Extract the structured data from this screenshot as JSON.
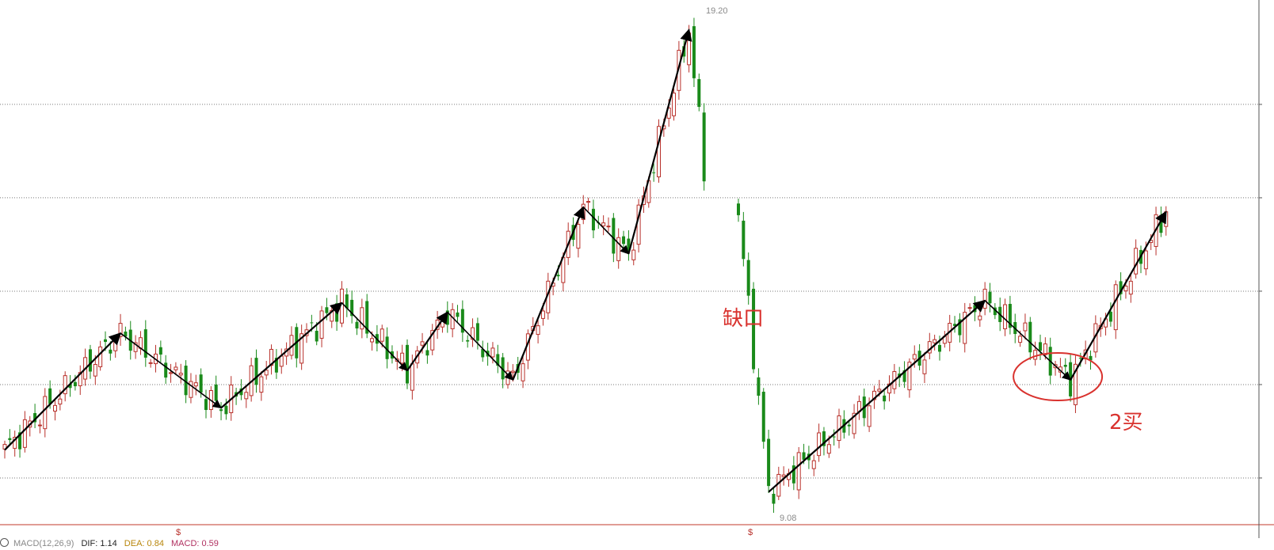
{
  "chart_data": {
    "type": "candlestick",
    "high_label": "19.20",
    "low_label": "9.08",
    "price_gridlines": [
      17.5,
      15.5,
      13.5,
      11.5,
      9.5
    ],
    "ylim": [
      8.72,
      19.6
    ],
    "up_color": "#b8302a",
    "down_color": "#1a8a1a",
    "segment_color": "#000000",
    "annotation_color": "#d9322e",
    "annotations": {
      "gap": "缺口",
      "second_buy": "2买"
    },
    "markers": [
      "$",
      "$"
    ],
    "segment_pivots": [
      {
        "i": 0,
        "price": 10.1
      },
      {
        "i": 23,
        "price": 12.6
      },
      {
        "i": 43,
        "price": 11.0
      },
      {
        "i": 67,
        "price": 13.25
      },
      {
        "i": 80,
        "price": 11.8
      },
      {
        "i": 88,
        "price": 13.05
      },
      {
        "i": 101,
        "price": 11.6
      },
      {
        "i": 115,
        "price": 15.3
      },
      {
        "i": 124,
        "price": 14.3
      },
      {
        "i": 136,
        "price": 19.1
      },
      {
        "i": 146,
        "price": 9.2
      },
      {
        "i": 189,
        "price": 13.3
      },
      {
        "i": 206,
        "price": 11.6
      },
      {
        "i": 225,
        "price": 15.2
      }
    ],
    "gap_after_index": 139
  },
  "indicator": {
    "name": "MACD(12,26,9)",
    "dif_label": "DIF: 1.14",
    "dea_label": "DEA: 0.84",
    "macd_label": "MACD: 0.59"
  }
}
